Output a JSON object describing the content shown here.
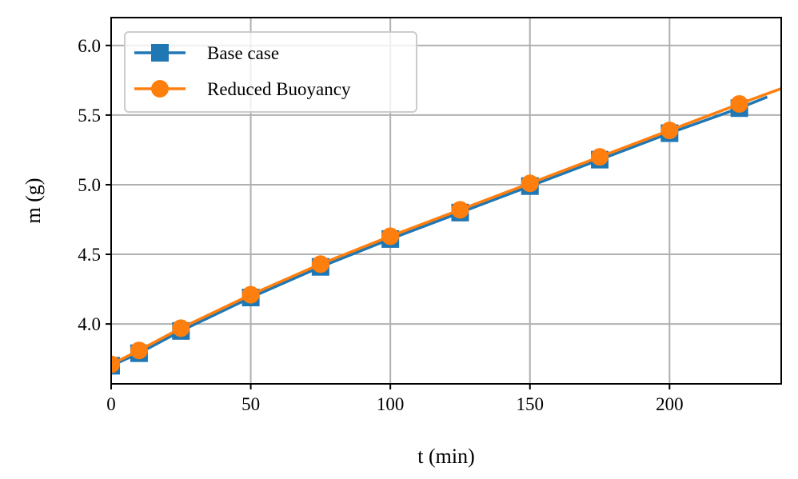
{
  "chart_data": {
    "type": "line",
    "title": "",
    "xlabel": "t (min)",
    "ylabel": "m (g)",
    "xlim": [
      0,
      240
    ],
    "ylim": [
      3.57,
      6.2
    ],
    "xticks": [
      0,
      50,
      100,
      150,
      200
    ],
    "yticks": [
      4.0,
      4.5,
      5.0,
      5.5,
      6.0
    ],
    "xtick_labels": [
      "0",
      "50",
      "100",
      "150",
      "200"
    ],
    "ytick_labels": [
      "4.0",
      "4.5",
      "5.0",
      "5.5",
      "6.0"
    ],
    "grid": true,
    "legend_position": "top-left",
    "series": [
      {
        "name": "Base case",
        "color": "#1f77b4",
        "marker": "square",
        "line_x": [
          0,
          10,
          25,
          50,
          75,
          100,
          125,
          150,
          175,
          200,
          225,
          235
        ],
        "line_y": [
          3.7,
          3.79,
          3.95,
          4.19,
          4.41,
          4.61,
          4.8,
          4.99,
          5.18,
          5.37,
          5.55,
          5.63
        ],
        "marker_x": [
          0,
          10,
          25,
          50,
          75,
          100,
          125,
          150,
          175,
          200,
          225
        ],
        "marker_y": [
          3.7,
          3.79,
          3.95,
          4.19,
          4.41,
          4.61,
          4.8,
          4.99,
          5.18,
          5.37,
          5.55
        ]
      },
      {
        "name": "Reduced Buoyancy",
        "color": "#ff7f0e",
        "marker": "circle",
        "line_x": [
          0,
          10,
          25,
          50,
          75,
          100,
          125,
          150,
          175,
          200,
          225,
          240
        ],
        "line_y": [
          3.71,
          3.81,
          3.97,
          4.21,
          4.43,
          4.63,
          4.82,
          5.01,
          5.2,
          5.39,
          5.58,
          5.69
        ],
        "marker_x": [
          0,
          10,
          25,
          50,
          75,
          100,
          125,
          150,
          175,
          200,
          225
        ],
        "marker_y": [
          3.71,
          3.81,
          3.97,
          4.21,
          4.43,
          4.63,
          4.82,
          5.01,
          5.2,
          5.39,
          5.58
        ]
      }
    ]
  }
}
